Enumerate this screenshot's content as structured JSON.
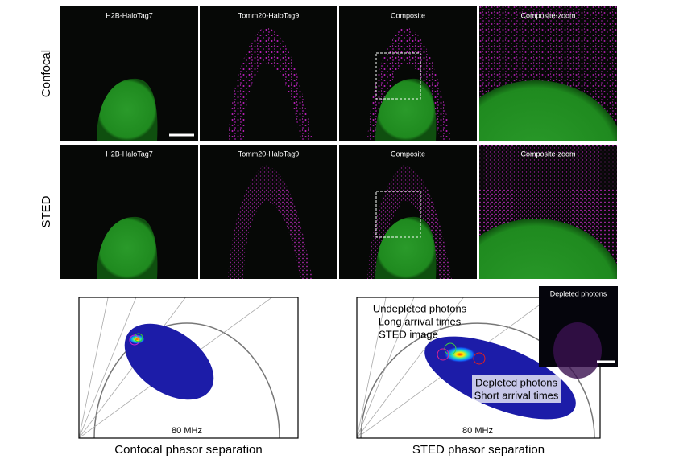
{
  "rows": [
    {
      "label": "Confocal",
      "panels": [
        "H2B-HaloTag7",
        "Tomm20-HaloTag9",
        "Composite",
        "Composite-zoom"
      ]
    },
    {
      "label": "STED",
      "panels": [
        "H2B-HaloTag7",
        "Tomm20-HaloTag9",
        "Composite",
        "Composite-zoom"
      ]
    }
  ],
  "phasors": [
    {
      "frequency": "80 MHz",
      "caption": "Confocal phasor separation"
    },
    {
      "frequency": "80 MHz",
      "caption": "STED phasor separation",
      "annotations": [
        "Undepleted photons",
        "Long arrival times",
        "STED image",
        "Depleted photons",
        "Short arrival times"
      ],
      "inset_title": "Depleted photons"
    }
  ]
}
